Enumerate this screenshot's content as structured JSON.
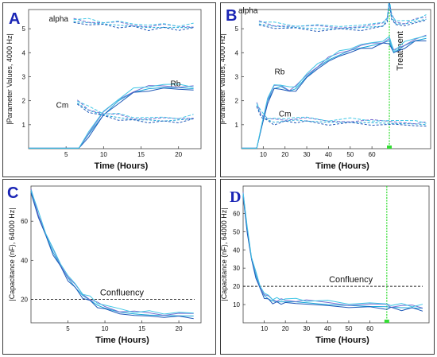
{
  "figure": {
    "panels": [
      {
        "letter": "A"
      },
      {
        "letter": "B"
      },
      {
        "letter": "C"
      },
      {
        "letter": "D"
      }
    ]
  },
  "colors": {
    "curve_1": "#19a7d8",
    "curve_2": "#7b6fd0",
    "curve_3": "#1f58b8",
    "curve_4": "#3ec6e6",
    "treatment_line": "#33dd33",
    "confluency_line": "#222222",
    "panel_letter": "#1a25b5"
  },
  "chart_data": [
    {
      "panel": "A",
      "type": "line",
      "xlabel": "Time (Hours)",
      "ylabel": "|Parameter Values, 4000 Hz|",
      "xlim": [
        0,
        23
      ],
      "ylim": [
        0,
        5.8
      ],
      "xticks": [
        5,
        10,
        15,
        20
      ],
      "yticks": [
        1,
        2,
        3,
        4,
        5
      ],
      "grid": false,
      "series": [
        {
          "label": "alpha",
          "dash": "dashed",
          "x": [
            6,
            8,
            10,
            12,
            14,
            16,
            18,
            20,
            22
          ],
          "y": [
            5.3,
            5.25,
            5.2,
            5.15,
            5.1,
            5.05,
            5.05,
            5.05,
            5.05
          ]
        },
        {
          "label": "Rb",
          "dash": "solid",
          "x": [
            0,
            2,
            4,
            6,
            6.7,
            8,
            10,
            12,
            14,
            16,
            18,
            20,
            22
          ],
          "y": [
            0.02,
            0.02,
            0.02,
            0.02,
            0.02,
            0.6,
            1.4,
            2.0,
            2.35,
            2.5,
            2.55,
            2.55,
            2.5
          ]
        },
        {
          "label": "Cm",
          "dash": "dashed",
          "x": [
            6.5,
            8,
            10,
            12,
            14,
            16,
            18,
            20,
            22
          ],
          "y": [
            1.9,
            1.6,
            1.4,
            1.3,
            1.2,
            1.2,
            1.15,
            1.2,
            1.25
          ]
        }
      ]
    },
    {
      "panel": "B",
      "type": "line",
      "xlabel": "Time (Hours)",
      "ylabel": "|Parameter Values, 4000 Hz|",
      "annotation": "Treatment",
      "treatment_time": 68,
      "xlim": [
        0,
        87
      ],
      "ylim": [
        0,
        5.8
      ],
      "xticks": [
        10,
        20,
        30,
        40,
        50,
        60
      ],
      "yticks": [
        1,
        2,
        3,
        4,
        5
      ],
      "grid": false,
      "series": [
        {
          "label": "alpha",
          "dash": "dashed",
          "x": [
            8,
            15,
            25,
            35,
            45,
            55,
            65,
            67,
            68,
            69,
            71,
            75,
            80,
            85
          ],
          "y": [
            5.2,
            5.1,
            5.05,
            5.0,
            5.0,
            5.05,
            5.1,
            5.4,
            6.1,
            5.5,
            5.2,
            5.2,
            5.3,
            5.4
          ]
        },
        {
          "label": "Rb",
          "dash": "solid",
          "x": [
            0,
            3,
            6,
            7,
            9,
            12,
            15,
            18,
            22,
            25,
            30,
            35,
            40,
            45,
            50,
            55,
            60,
            65,
            68,
            70,
            75,
            80,
            85
          ],
          "y": [
            0.02,
            0.02,
            0.02,
            0.02,
            0.8,
            2.0,
            2.5,
            2.6,
            2.4,
            2.5,
            3.0,
            3.4,
            3.7,
            3.9,
            4.1,
            4.2,
            4.3,
            4.4,
            4.5,
            4.0,
            4.3,
            4.5,
            4.6
          ]
        },
        {
          "label": "Cm",
          "dash": "dashed",
          "x": [
            7,
            9,
            12,
            15,
            20,
            25,
            30,
            40,
            50,
            60,
            70,
            80,
            85
          ],
          "y": [
            1.8,
            1.4,
            1.2,
            1.1,
            1.15,
            1.2,
            1.15,
            1.1,
            1.1,
            1.08,
            1.05,
            1.03,
            1.0
          ]
        }
      ]
    },
    {
      "panel": "C",
      "type": "line",
      "xlabel": "Time (Hours)",
      "ylabel": "|Capacitance (nF), 64000 Hz|",
      "annotation": "Confluency",
      "reference_y": 20,
      "xlim": [
        0,
        23
      ],
      "ylim": [
        8,
        78
      ],
      "xticks": [
        5,
        10,
        15,
        20
      ],
      "yticks": [
        20,
        40,
        60
      ],
      "grid": false,
      "series": [
        {
          "label": "",
          "dash": "solid",
          "x": [
            0,
            1,
            2,
            3,
            4,
            5,
            6,
            7,
            8,
            9,
            10,
            12,
            14,
            16,
            18,
            20,
            22
          ],
          "y": [
            75,
            63,
            53,
            44,
            37,
            31,
            26,
            22,
            19.5,
            17,
            15.5,
            13.5,
            12.5,
            12,
            11.8,
            11.6,
            11.5
          ]
        }
      ]
    },
    {
      "panel": "D",
      "type": "line",
      "xlabel": "Time (Hours)",
      "ylabel": "|Capacitance (nF), 64000 Hz|",
      "annotation": "Confluency",
      "reference_y": 20,
      "treatment_time": 68,
      "xlim": [
        0,
        88
      ],
      "ylim": [
        0,
        75
      ],
      "xticks": [
        10,
        20,
        30,
        40,
        50,
        60
      ],
      "yticks": [
        10,
        20,
        30,
        40,
        50,
        60
      ],
      "grid": false,
      "series": [
        {
          "label": "",
          "dash": "solid",
          "x": [
            0,
            2,
            4,
            6,
            8,
            10,
            12,
            14,
            16,
            18,
            20,
            25,
            30,
            40,
            50,
            60,
            68,
            70,
            75,
            80,
            85
          ],
          "y": [
            70,
            50,
            35,
            26,
            19,
            15,
            13,
            12,
            11.5,
            11.5,
            11.5,
            11.5,
            11,
            10,
            9.5,
            9,
            8.8,
            8.5,
            8.3,
            8.2,
            8.0
          ]
        }
      ]
    }
  ]
}
